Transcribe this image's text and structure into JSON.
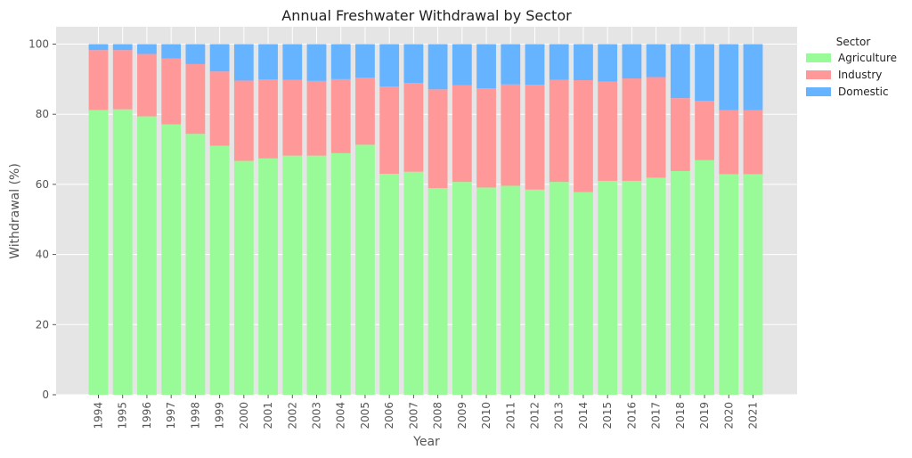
{
  "chart_data": {
    "type": "bar",
    "stacked": true,
    "title": "Annual Freshwater Withdrawal by Sector",
    "xlabel": "Year",
    "ylabel": "Withdrawal (%)",
    "ylim": [
      0,
      100
    ],
    "yticks": [
      0,
      20,
      40,
      60,
      80,
      100
    ],
    "grid": true,
    "categories": [
      "1994",
      "1995",
      "1996",
      "1997",
      "1998",
      "1999",
      "2000",
      "2001",
      "2002",
      "2003",
      "2004",
      "2005",
      "2006",
      "2007",
      "2008",
      "2009",
      "2010",
      "2011",
      "2012",
      "2013",
      "2014",
      "2015",
      "2016",
      "2017",
      "2018",
      "2019",
      "2020",
      "2021"
    ],
    "series": [
      {
        "name": "Agriculture",
        "color": "#98fb98",
        "values": [
          81.2,
          81.4,
          79.4,
          77.1,
          74.4,
          71.0,
          66.7,
          67.4,
          68.2,
          68.2,
          68.9,
          71.3,
          63.0,
          63.6,
          58.9,
          60.7,
          59.1,
          59.6,
          58.5,
          60.7,
          57.8,
          61.0,
          61.0,
          61.9,
          63.8,
          66.9,
          62.9,
          62.9
        ]
      },
      {
        "name": "Industry",
        "color": "#ff9999",
        "values": [
          17.1,
          16.9,
          17.8,
          18.8,
          19.9,
          21.2,
          22.9,
          22.5,
          21.6,
          21.3,
          21.1,
          19.1,
          24.9,
          25.3,
          28.2,
          27.6,
          28.3,
          28.9,
          29.9,
          29.1,
          31.9,
          28.3,
          29.2,
          28.7,
          20.8,
          16.9,
          18.3,
          18.3
        ]
      },
      {
        "name": "Domestic",
        "color": "#66b3ff",
        "values": [
          1.7,
          1.7,
          2.8,
          4.1,
          5.7,
          7.8,
          10.4,
          10.1,
          10.2,
          10.5,
          10.0,
          9.6,
          12.1,
          11.1,
          12.9,
          11.7,
          12.6,
          11.5,
          11.6,
          10.2,
          10.3,
          10.7,
          9.8,
          9.4,
          15.4,
          16.2,
          18.8,
          18.8
        ]
      }
    ],
    "legend": {
      "title": "Sector",
      "placement": "outside-top-right"
    }
  }
}
